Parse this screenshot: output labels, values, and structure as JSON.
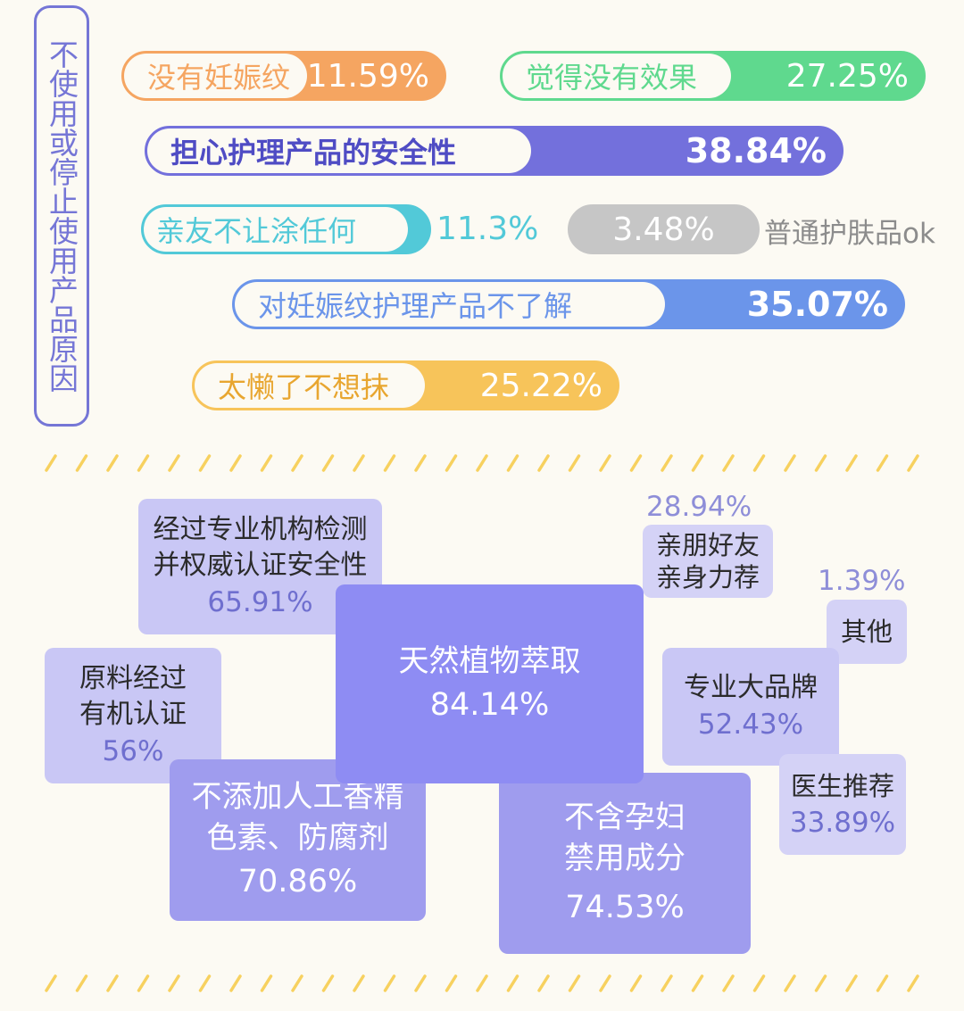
{
  "title": "不使用或停止使用产品原因",
  "colors": {
    "orange": "#f5a561",
    "green": "#5fd98e",
    "purple": "#7370dc",
    "teal": "#52c9d8",
    "grey": "#c6c6c6",
    "blue": "#6b95ea",
    "yellow": "#f7c45a",
    "background": "#fcfaf3",
    "stripe": "#f7d15f"
  },
  "chart_data": [
    {
      "type": "bar",
      "title": "不使用或停止使用产品原因",
      "categories": [
        "没有妊娠纹",
        "觉得没有效果",
        "担心护理产品的安全性",
        "亲友不让涂任何",
        "普通护肤品ok",
        "对妊娠纹护理产品不了解",
        "太懒了不想抹"
      ],
      "values": [
        11.59,
        27.25,
        38.84,
        11.3,
        3.48,
        35.07,
        25.22
      ],
      "value_labels": [
        "11.59%",
        "27.25%",
        "38.84%",
        "11.3%",
        "3.48%",
        "35.07%",
        "25.22%"
      ]
    },
    {
      "type": "heatmap",
      "categories": [
        "天然植物萃取",
        "不含孕妇禁用成分",
        "不添加人工香精色素、防腐剂",
        "经过专业机构检测并权威认证安全性",
        "原料经过有机认证",
        "专业大品牌",
        "医生推荐",
        "亲朋好友亲身力荐",
        "其他"
      ],
      "values": [
        84.14,
        74.53,
        70.86,
        65.91,
        56,
        52.43,
        33.89,
        28.94,
        1.39
      ],
      "display_labels": [
        "天然植物萃取",
        "不含孕妇\n禁用成分",
        "不添加人工香精\n色素、防腐剂",
        "经过专业机构检测\n并权威认证安全性",
        "原料经过\n有机认证",
        "专业大品牌",
        "医生推荐",
        "亲朋好友\n亲身力荐",
        "其他"
      ],
      "value_labels": [
        "84.14%",
        "74.53%",
        "70.86%",
        "65.91%",
        "56%",
        "52.43%",
        "33.89%",
        "28.94%",
        "1.39%"
      ]
    }
  ]
}
